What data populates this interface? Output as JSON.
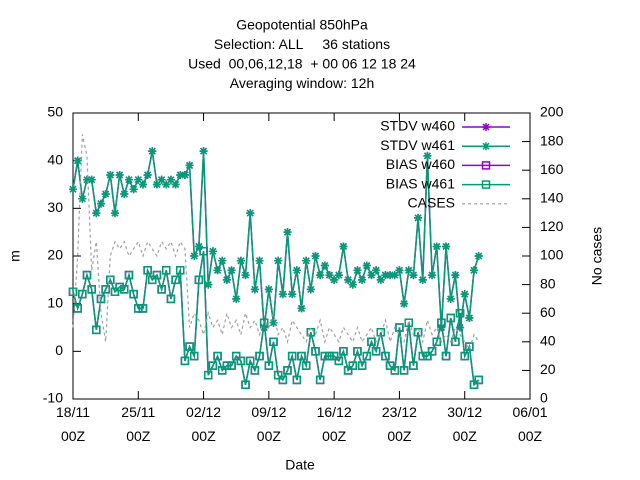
{
  "chart_data": {
    "type": "line",
    "title": [
      "Geopotential 850hPa",
      "Selection: ALL     36 stations",
      "Used  00,06,12,18  + 00 06 12 18 24",
      "Averaging window: 12h"
    ],
    "x_label": "Date",
    "y_label": "m",
    "y2_label": "No cases",
    "xlim": [
      0,
      49
    ],
    "ylim": [
      -10,
      50
    ],
    "y2lim": [
      0,
      200
    ],
    "xticks": [
      {
        "value": 0,
        "label": "18/11 00Z"
      },
      {
        "value": 7,
        "label": "25/11 00Z"
      },
      {
        "value": 14,
        "label": "02/12 00Z"
      },
      {
        "value": 21,
        "label": "09/12 00Z"
      },
      {
        "value": 28,
        "label": "16/12 00Z"
      },
      {
        "value": 35,
        "label": "23/12 00Z"
      },
      {
        "value": 42,
        "label": "30/12 00Z"
      },
      {
        "value": 49,
        "label": "06/01 00Z"
      }
    ],
    "yticks": [
      -10,
      0,
      10,
      20,
      30,
      40,
      50
    ],
    "y2ticks": [
      0,
      20,
      40,
      60,
      80,
      100,
      120,
      140,
      160,
      180,
      200
    ],
    "grid": false,
    "legend": "top-right",
    "x": [
      0,
      0.5,
      1,
      1.5,
      2,
      2.5,
      3,
      3.5,
      4,
      4.5,
      5,
      5.5,
      6,
      6.5,
      7,
      7.5,
      8,
      8.5,
      9,
      9.5,
      10,
      10.5,
      11,
      11.5,
      12,
      12.5,
      13,
      13.5,
      14,
      14.5,
      15,
      15.5,
      16,
      16.5,
      17,
      17.5,
      18,
      18.5,
      19,
      19.5,
      20,
      20.5,
      21,
      21.5,
      22,
      22.5,
      23,
      23.5,
      24,
      24.5,
      25,
      25.5,
      26,
      26.5,
      27,
      27.5,
      28,
      28.5,
      29,
      29.5,
      30,
      30.5,
      31,
      31.5,
      32,
      32.5,
      33,
      33.5,
      34,
      34.5,
      35,
      35.5,
      36,
      36.5,
      37,
      37.5,
      38,
      38.5,
      39,
      39.5,
      40,
      40.5,
      41,
      41.5,
      42,
      42.5,
      43,
      43.5
    ],
    "series": [
      {
        "name": "STDV w460",
        "color": "#9400d3",
        "marker": "star",
        "values": [
          34,
          40,
          32,
          36,
          36,
          29,
          31,
          33,
          37,
          29,
          37,
          33,
          36,
          34,
          36,
          35,
          37,
          42,
          35,
          36,
          35,
          36,
          35,
          37,
          37,
          39,
          20,
          22,
          42,
          14,
          21,
          17,
          19,
          15,
          17,
          11,
          19,
          16,
          29,
          13,
          19,
          5,
          13,
          6,
          19,
          12,
          25,
          12,
          17,
          9,
          19,
          13,
          20,
          16,
          18,
          16,
          15,
          16,
          22,
          15,
          14,
          17,
          15,
          18,
          16,
          17,
          15,
          16,
          16,
          16,
          17,
          10,
          17,
          16,
          28,
          15,
          41,
          16,
          22,
          5,
          22,
          11,
          16,
          5,
          12,
          7,
          17,
          20
        ]
      },
      {
        "name": "STDV w461",
        "color": "#009e73",
        "marker": "star",
        "values": [
          34,
          40,
          32,
          36,
          36,
          29,
          31,
          33,
          37,
          29,
          37,
          33,
          36,
          34,
          36,
          35,
          37,
          42,
          35,
          36,
          35,
          36,
          35,
          37,
          37,
          39,
          20,
          22,
          42,
          14,
          21,
          17,
          19,
          15,
          17,
          11,
          19,
          16,
          29,
          13,
          19,
          5,
          13,
          6,
          19,
          12,
          25,
          12,
          17,
          9,
          19,
          13,
          20,
          16,
          18,
          16,
          15,
          16,
          22,
          15,
          14,
          17,
          15,
          18,
          16,
          17,
          15,
          16,
          16,
          16,
          17,
          10,
          17,
          16,
          28,
          15,
          41,
          16,
          22,
          5,
          22,
          11,
          16,
          5,
          12,
          7,
          17,
          20
        ]
      },
      {
        "name": "BIAS w460",
        "color": "#9400d3",
        "marker": "square",
        "values": [
          12.5,
          9,
          12,
          16,
          13,
          4.5,
          11,
          13,
          15,
          12.5,
          13.5,
          13,
          16,
          12,
          9,
          9,
          17,
          15,
          16,
          13,
          17,
          11,
          15,
          17,
          -2,
          1,
          -1,
          15,
          21,
          -5,
          -3,
          -1,
          -4,
          -3,
          -3,
          -1,
          -2,
          -7,
          -2,
          -4,
          -1,
          6,
          -3,
          2,
          -5,
          -6,
          -4,
          -1,
          -6,
          -1,
          -3,
          4,
          0,
          -6,
          -1,
          -1,
          -1,
          -2,
          0,
          -4,
          -3,
          0,
          -3,
          -1,
          2,
          0,
          4,
          -1,
          -3,
          -4,
          5,
          -4,
          6,
          -3,
          4,
          -1,
          -1,
          0,
          2,
          6,
          -1,
          7,
          2,
          8,
          -1,
          1,
          -7,
          -6
        ]
      },
      {
        "name": "BIAS w461",
        "color": "#009e73",
        "marker": "square",
        "values": [
          12.5,
          9,
          12,
          16,
          13,
          4.5,
          11,
          13,
          15,
          12.5,
          13.5,
          13,
          16,
          12,
          9,
          9,
          17,
          15,
          16,
          13,
          17,
          11,
          15,
          17,
          -2,
          1,
          -1,
          15,
          21,
          -5,
          -3,
          -1,
          -4,
          -3,
          -3,
          -1,
          -2,
          -7,
          -2,
          -4,
          -1,
          6,
          -3,
          2,
          -5,
          -6,
          -4,
          -1,
          -6,
          -1,
          -3,
          4,
          0,
          -6,
          -1,
          -1,
          -1,
          -2,
          0,
          -4,
          -3,
          0,
          -3,
          -1,
          2,
          0,
          4,
          -1,
          -3,
          -4,
          5,
          -4,
          6,
          -3,
          4,
          -1,
          -1,
          0,
          2,
          6,
          -1,
          7,
          2,
          8,
          -1,
          1,
          -7,
          -6
        ]
      },
      {
        "name": "CASES",
        "color": "#a0a0a0",
        "dashed": true,
        "axis": "y2",
        "values": [
          50,
          100,
          185,
          170,
          90,
          110,
          60,
          40,
          100,
          110,
          105,
          110,
          100,
          105,
          110,
          100,
          110,
          105,
          100,
          110,
          105,
          110,
          100,
          110,
          105,
          50,
          60,
          55,
          45,
          60,
          50,
          55,
          45,
          60,
          50,
          55,
          45,
          60,
          50,
          55,
          45,
          55,
          50,
          60,
          45,
          50,
          40,
          55,
          50,
          45,
          40,
          50,
          45,
          55,
          40,
          50,
          45,
          40,
          50,
          45,
          40,
          50,
          40,
          45,
          50,
          40,
          45,
          55,
          40,
          50,
          45,
          40,
          55,
          45,
          50,
          40,
          55,
          45,
          50,
          40,
          45,
          40,
          50,
          45,
          40,
          35,
          45,
          40
        ]
      }
    ]
  }
}
